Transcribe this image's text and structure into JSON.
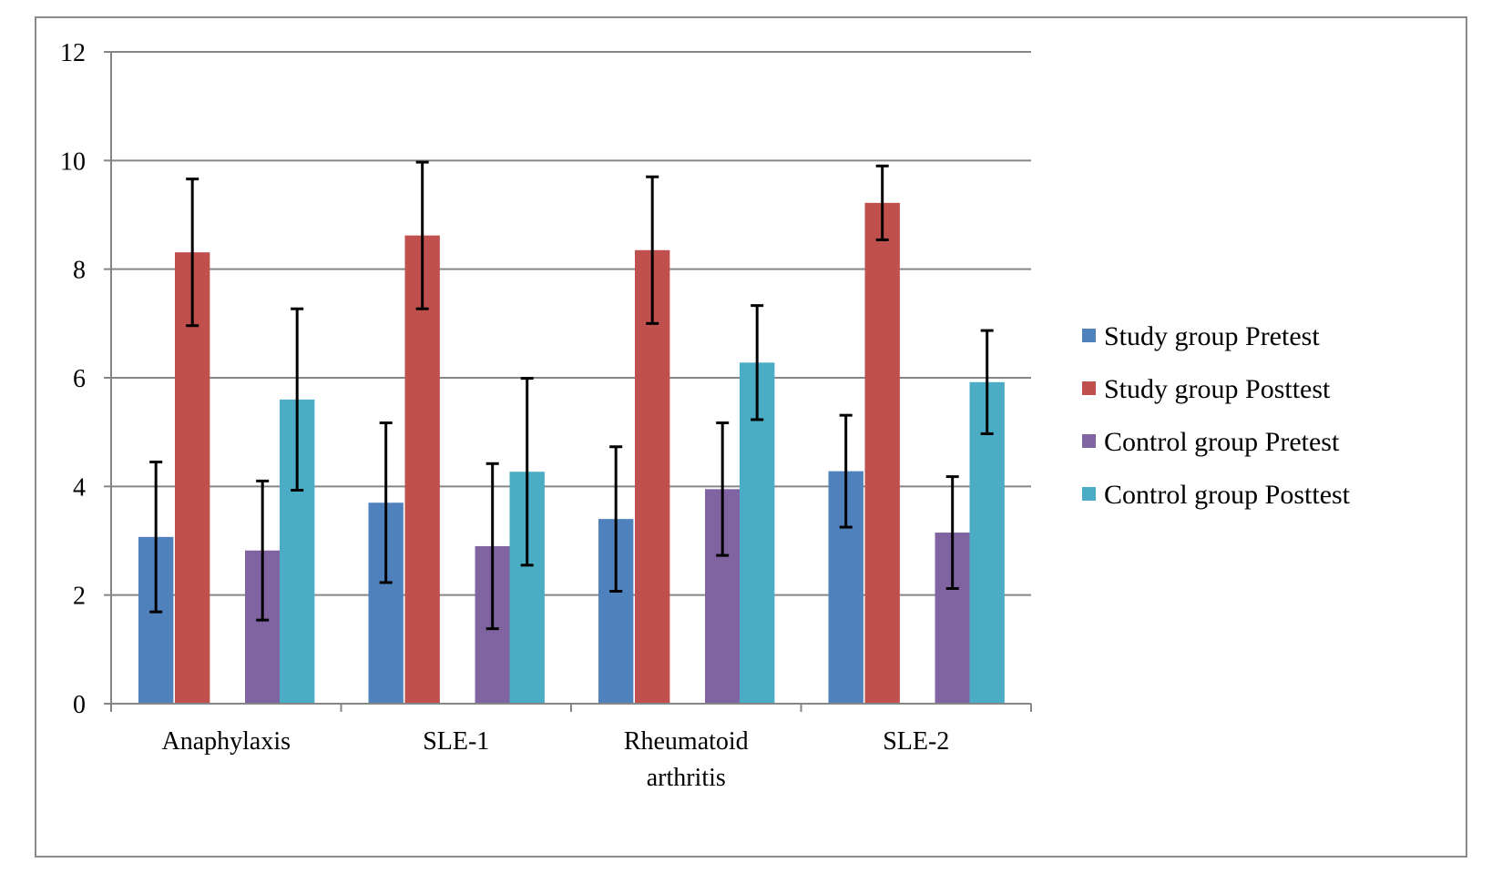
{
  "chart_data": {
    "type": "bar",
    "categories": [
      [
        "Anaphylaxis"
      ],
      [
        "SLE-1"
      ],
      [
        "Rheumatoid",
        "arthritis"
      ],
      [
        "SLE-2"
      ]
    ],
    "ylim": [
      0,
      12
    ],
    "yticks": [
      "0",
      "2",
      "4",
      "6",
      "8",
      "10",
      "12"
    ],
    "grid": true,
    "legend_position": "right",
    "series": [
      {
        "name": "Study group Pretest",
        "color": "#4f81bd",
        "values": [
          3.07,
          3.7,
          3.4,
          4.28
        ],
        "errors": [
          1.38,
          1.47,
          1.33,
          1.03
        ]
      },
      {
        "name": "Study group Posttest",
        "color": "#c0504d",
        "values": [
          8.31,
          8.62,
          8.35,
          9.22
        ],
        "errors": [
          1.35,
          1.35,
          1.35,
          0.68
        ]
      },
      {
        "name": "Control group Pretest",
        "color": "#8064a2",
        "values": [
          2.82,
          2.9,
          3.95,
          3.15
        ],
        "errors": [
          1.28,
          1.52,
          1.22,
          1.03
        ]
      },
      {
        "name": "Control group Posttest",
        "color": "#4bacc6",
        "values": [
          5.6,
          4.27,
          6.28,
          5.92
        ],
        "errors": [
          1.67,
          1.72,
          1.05,
          0.95
        ]
      }
    ]
  }
}
